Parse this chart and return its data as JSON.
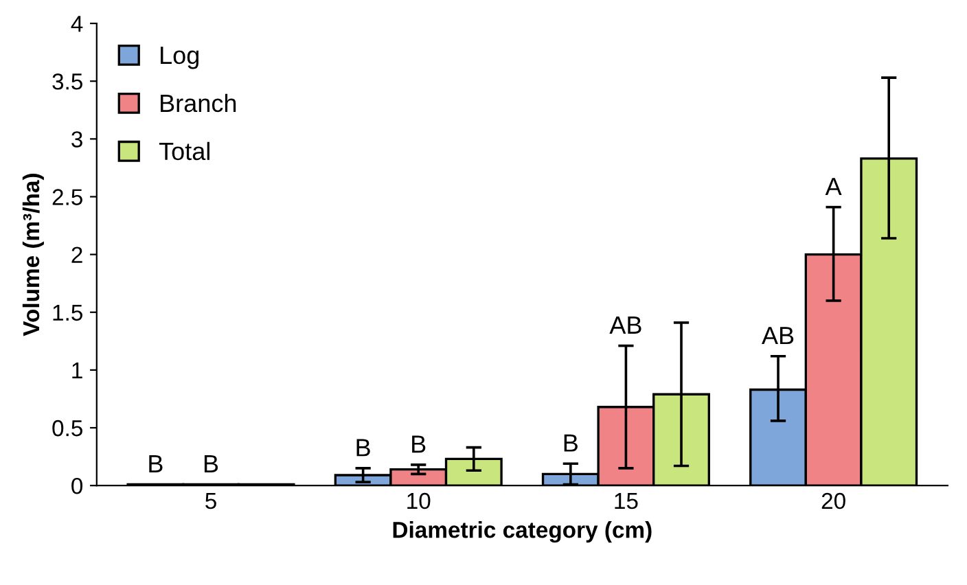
{
  "chart_data": {
    "type": "bar",
    "xlabel": "Diametric category (cm)",
    "ylabel": "Volume (m³/ha)",
    "categories": [
      "5",
      "10",
      "15",
      "20"
    ],
    "series": [
      {
        "name": "Log",
        "color": "#7ea6da",
        "values": [
          0.01,
          0.09,
          0.1,
          0.83
        ],
        "errors": [
          null,
          0.06,
          0.09,
          [
            0.56,
            1.12
          ]
        ],
        "value_labels": [
          "B",
          "B",
          "B",
          "AB"
        ]
      },
      {
        "name": "Branch",
        "color": "#f08385",
        "values": [
          0.01,
          0.14,
          0.68,
          2.0
        ],
        "errors": [
          null,
          0.04,
          [
            0.15,
            1.21
          ],
          [
            1.6,
            2.41
          ]
        ],
        "value_labels": [
          "B",
          "B",
          "AB",
          "A"
        ]
      },
      {
        "name": "Total",
        "color": "#c8e57e",
        "values": [
          0.01,
          0.23,
          0.79,
          2.83
        ],
        "errors": [
          null,
          0.1,
          [
            0.17,
            1.41
          ],
          [
            2.14,
            3.53
          ]
        ]
      }
    ],
    "ylim": [
      0,
      4
    ],
    "yticks": [
      0,
      0.5,
      1,
      1.5,
      2,
      2.5,
      3,
      3.5,
      4
    ],
    "grid": false,
    "legend": "top left"
  }
}
